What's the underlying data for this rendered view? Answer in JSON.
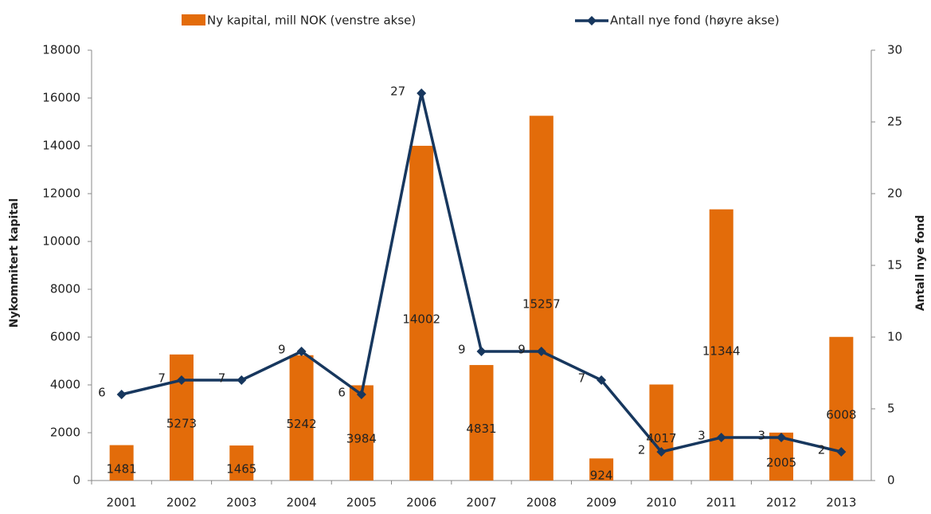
{
  "chart_data": {
    "type": "bar-line",
    "categories": [
      "2001",
      "2002",
      "2003",
      "2004",
      "2005",
      "2006",
      "2007",
      "2008",
      "2009",
      "2010",
      "2011",
      "2012",
      "2013"
    ],
    "series": [
      {
        "name": "Ny kapital, mill NOK (venstre akse)",
        "type": "bar",
        "color": "#e36c0a",
        "values": [
          1481,
          5273,
          1465,
          5242,
          3984,
          14002,
          4831,
          15257,
          924,
          4017,
          11344,
          2005,
          6008
        ]
      },
      {
        "name": "Antall nye fond (høyre akse)",
        "type": "line",
        "color": "#17375e",
        "axis": "y2",
        "values": [
          6,
          7,
          7,
          9,
          6,
          27,
          9,
          9,
          7,
          2,
          3,
          3,
          2
        ]
      }
    ],
    "ylabel": "Nykommitert kapital",
    "y2label": "Antall nye fond",
    "ylim": [
      0,
      18000
    ],
    "yticks": [
      0,
      2000,
      4000,
      6000,
      8000,
      10000,
      12000,
      14000,
      16000,
      18000
    ],
    "y2lim": [
      0,
      30
    ],
    "y2ticks": [
      0,
      5,
      10,
      15,
      20,
      25,
      30
    ],
    "legend": "top"
  }
}
